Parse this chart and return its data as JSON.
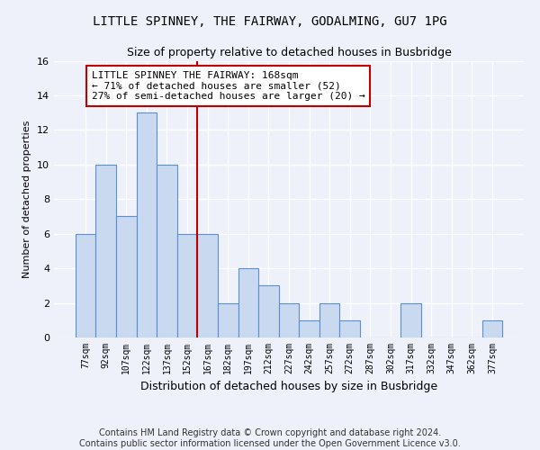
{
  "title": "LITTLE SPINNEY, THE FAIRWAY, GODALMING, GU7 1PG",
  "subtitle": "Size of property relative to detached houses in Busbridge",
  "xlabel": "Distribution of detached houses by size in Busbridge",
  "ylabel": "Number of detached properties",
  "bar_labels": [
    "77sqm",
    "92sqm",
    "107sqm",
    "122sqm",
    "137sqm",
    "152sqm",
    "167sqm",
    "182sqm",
    "197sqm",
    "212sqm",
    "227sqm",
    "242sqm",
    "257sqm",
    "272sqm",
    "287sqm",
    "302sqm",
    "317sqm",
    "332sqm",
    "347sqm",
    "362sqm",
    "377sqm"
  ],
  "bar_values": [
    6,
    10,
    7,
    13,
    10,
    6,
    6,
    2,
    4,
    3,
    2,
    1,
    2,
    1,
    0,
    0,
    2,
    0,
    0,
    0,
    1
  ],
  "bar_color": "#c9d9f0",
  "bar_edge_color": "#5b8fd4",
  "vline_x": 5.5,
  "vline_color": "#c00000",
  "annotation_text": "LITTLE SPINNEY THE FAIRWAY: 168sqm\n← 71% of detached houses are smaller (52)\n27% of semi-detached houses are larger (20) →",
  "annotation_box_color": "#ffffff",
  "annotation_box_edge": "#c00000",
  "ylim": [
    0,
    16
  ],
  "yticks": [
    0,
    2,
    4,
    6,
    8,
    10,
    12,
    14,
    16
  ],
  "background_color": "#eef1fa",
  "grid_color": "#ffffff",
  "footer": "Contains HM Land Registry data © Crown copyright and database right 2024.\nContains public sector information licensed under the Open Government Licence v3.0.",
  "title_fontsize": 10,
  "subtitle_fontsize": 9,
  "annotation_fontsize": 8,
  "footer_fontsize": 7,
  "ylabel_fontsize": 8,
  "xlabel_fontsize": 9
}
